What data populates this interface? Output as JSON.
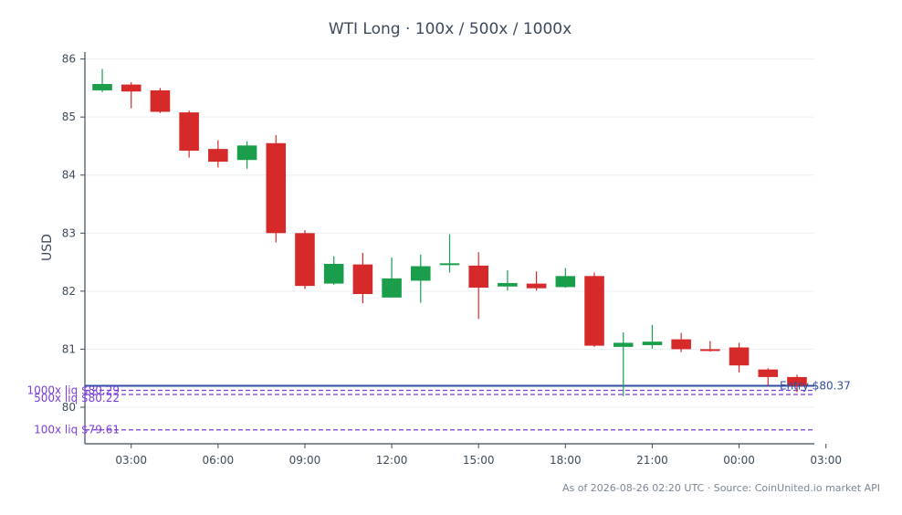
{
  "chart_data": {
    "type": "candlestick",
    "title": "WTI Long · 100x / 500x / 1000x",
    "ylabel": "USD",
    "xlabel": "",
    "ylim": [
      79.37,
      86.12
    ],
    "xlim_hours": [
      -0.6,
      24.6
    ],
    "x_ticks": [
      {
        "hour": 1,
        "label": "03:00"
      },
      {
        "hour": 4,
        "label": "06:00"
      },
      {
        "hour": 7,
        "label": "09:00"
      },
      {
        "hour": 10,
        "label": "12:00"
      },
      {
        "hour": 13,
        "label": "15:00"
      },
      {
        "hour": 16,
        "label": "18:00"
      },
      {
        "hour": 19,
        "label": "21:00"
      },
      {
        "hour": 22,
        "label": "00:00"
      },
      {
        "hour": 25,
        "label": "03:00"
      }
    ],
    "y_ticks": [
      80,
      81,
      82,
      83,
      84,
      85,
      86
    ],
    "grid": true,
    "candles": [
      {
        "hour": 0,
        "open": 85.46,
        "high": 85.83,
        "low": 85.43,
        "close": 85.57
      },
      {
        "hour": 1,
        "open": 85.56,
        "high": 85.6,
        "low": 85.15,
        "close": 85.44
      },
      {
        "hour": 2,
        "open": 85.46,
        "high": 85.5,
        "low": 85.07,
        "close": 85.09
      },
      {
        "hour": 3,
        "open": 85.08,
        "high": 85.11,
        "low": 84.3,
        "close": 84.42
      },
      {
        "hour": 4,
        "open": 84.45,
        "high": 84.6,
        "low": 84.13,
        "close": 84.23
      },
      {
        "hour": 5,
        "open": 84.26,
        "high": 84.58,
        "low": 84.11,
        "close": 84.51
      },
      {
        "hour": 6,
        "open": 84.55,
        "high": 84.69,
        "low": 82.84,
        "close": 83.0
      },
      {
        "hour": 7,
        "open": 83.0,
        "high": 83.05,
        "low": 82.04,
        "close": 82.09
      },
      {
        "hour": 8,
        "open": 82.13,
        "high": 82.6,
        "low": 82.11,
        "close": 82.47
      },
      {
        "hour": 9,
        "open": 82.46,
        "high": 82.66,
        "low": 81.79,
        "close": 81.95
      },
      {
        "hour": 10,
        "open": 81.89,
        "high": 82.58,
        "low": 81.89,
        "close": 82.22
      },
      {
        "hour": 11,
        "open": 82.18,
        "high": 82.63,
        "low": 81.8,
        "close": 82.43
      },
      {
        "hour": 12,
        "open": 82.45,
        "high": 82.98,
        "low": 82.32,
        "close": 82.48
      },
      {
        "hour": 13,
        "open": 82.44,
        "high": 82.67,
        "low": 81.52,
        "close": 82.06
      },
      {
        "hour": 14,
        "open": 82.08,
        "high": 82.36,
        "low": 82.01,
        "close": 82.14
      },
      {
        "hour": 15,
        "open": 82.13,
        "high": 82.34,
        "low": 82.01,
        "close": 82.05
      },
      {
        "hour": 16,
        "open": 82.07,
        "high": 82.4,
        "low": 82.06,
        "close": 82.26
      },
      {
        "hour": 17,
        "open": 82.26,
        "high": 82.32,
        "low": 81.04,
        "close": 81.06
      },
      {
        "hour": 18,
        "open": 81.04,
        "high": 81.29,
        "low": 80.19,
        "close": 81.11
      },
      {
        "hour": 19,
        "open": 81.07,
        "high": 81.42,
        "low": 81.01,
        "close": 81.13
      },
      {
        "hour": 20,
        "open": 81.17,
        "high": 81.28,
        "low": 80.95,
        "close": 81.0
      },
      {
        "hour": 21,
        "open": 81.0,
        "high": 81.14,
        "low": 80.96,
        "close": 80.98
      },
      {
        "hour": 22,
        "open": 81.03,
        "high": 81.11,
        "low": 80.6,
        "close": 80.72
      },
      {
        "hour": 23,
        "open": 80.65,
        "high": 80.67,
        "low": 80.38,
        "close": 80.52
      },
      {
        "hour": 24,
        "open": 80.52,
        "high": 80.56,
        "low": 80.26,
        "close": 80.37
      }
    ],
    "reference_lines": [
      {
        "label": "Entry $80.37",
        "value": 80.37,
        "style": "solid",
        "color": "#2f4fa2",
        "label_side": "right"
      },
      {
        "label": "1000x liq $80.29",
        "value": 80.29,
        "style": "dashed",
        "color": "#7b3fd6",
        "label_side": "left"
      },
      {
        "label": "500x liq $80.22",
        "value": 80.22,
        "style": "dashed",
        "color": "#7b3fd6",
        "label_side": "left"
      },
      {
        "label": "100x liq $79.61",
        "value": 79.61,
        "style": "dashed",
        "color": "#7b3fd6",
        "label_side": "left"
      }
    ],
    "colors": {
      "up": "#1a9e4b",
      "down": "#d62a2a",
      "grid": "#eceff3",
      "axis": "#3d4a5c"
    }
  },
  "footer": "As of 2026-08-26 02:20 UTC · Source: CoinUnited.io market API"
}
